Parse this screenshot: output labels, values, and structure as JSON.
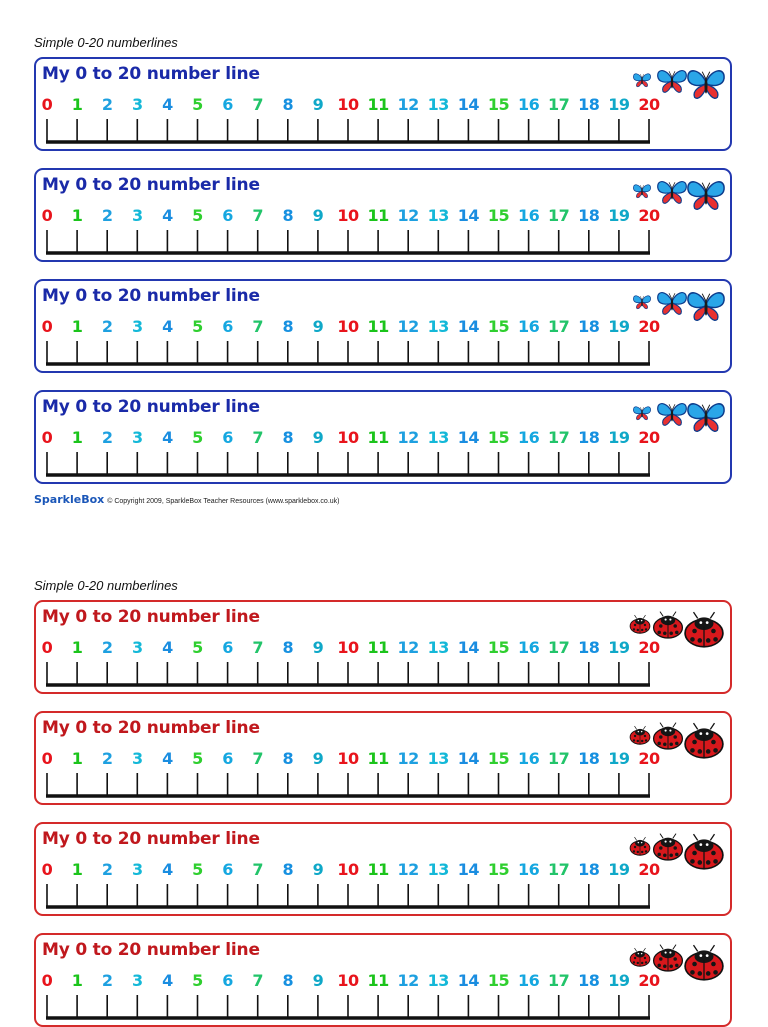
{
  "sections": [
    {
      "caption": "Simple 0-20 numberlines",
      "theme": "butterfly",
      "border_color": "#2338b0",
      "title_color": "#1a2aa8",
      "decor_icon": "butterfly-icon",
      "strips": [
        {
          "title": "My 0 to 20 number line"
        },
        {
          "title": "My 0 to 20 number line"
        },
        {
          "title": "My 0 to 20 number line"
        },
        {
          "title": "My 0 to 20 number line"
        }
      ]
    },
    {
      "caption": "Simple 0-20 numberlines",
      "theme": "ladybird",
      "border_color": "#d42a2a",
      "title_color": "#c0181d",
      "decor_icon": "ladybird-icon",
      "strips": [
        {
          "title": "My 0 to 20 number line"
        },
        {
          "title": "My 0 to 20 number line"
        },
        {
          "title": "My 0 to 20 number line"
        },
        {
          "title": "My 0 to 20 number line"
        }
      ]
    }
  ],
  "numbers": [
    "0",
    "1",
    "2",
    "3",
    "4",
    "5",
    "6",
    "7",
    "8",
    "9",
    "10",
    "11",
    "12",
    "13",
    "14",
    "15",
    "16",
    "17",
    "18",
    "19",
    "20"
  ],
  "number_colors": [
    "#e8141c",
    "#1bc41b",
    "#1ea0e0",
    "#14b8d8",
    "#1a8de0",
    "#2fcf2f",
    "#15a7e0",
    "#22c46a",
    "#1690e0",
    "#0fa8c8"
  ],
  "footer": {
    "logo": "SparkleBox",
    "copyright": "© Copyright 2009, SparkleBox Teacher Resources (www.sparklebox.co.uk)"
  }
}
